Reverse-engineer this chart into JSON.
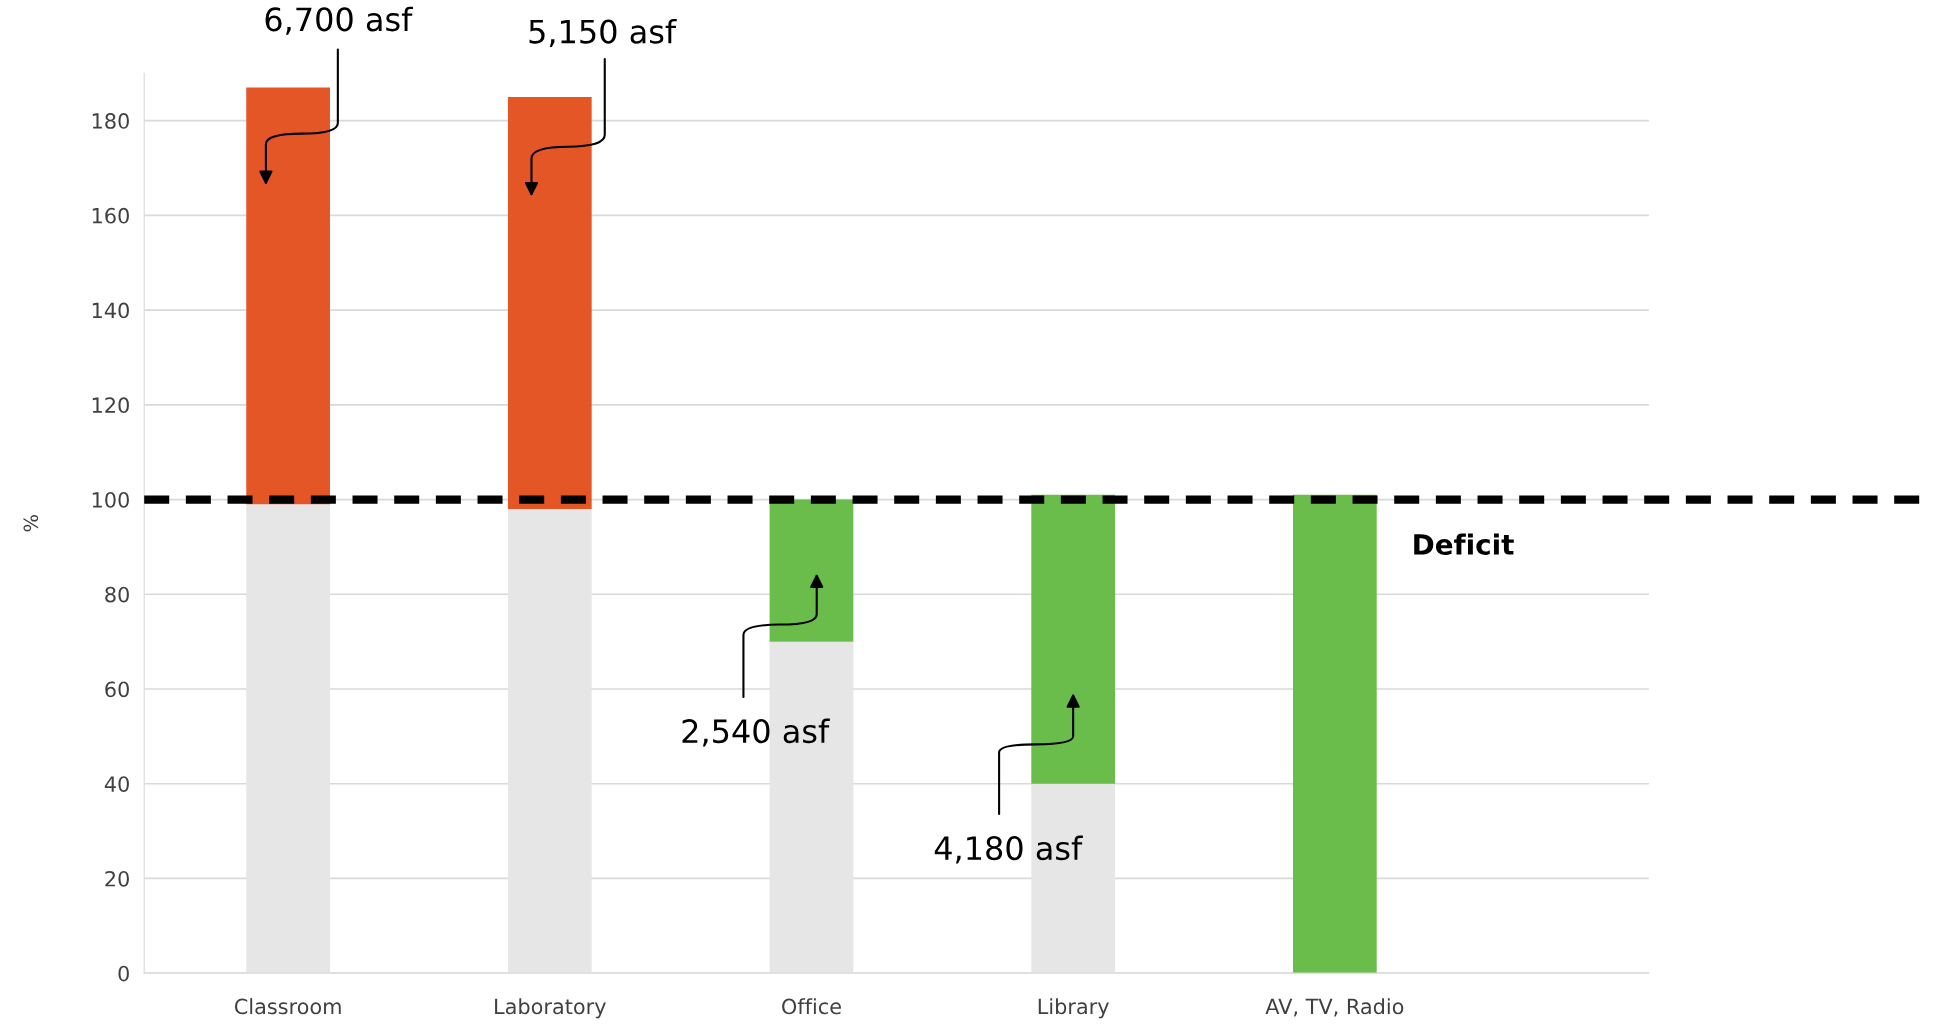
{
  "chart_data": {
    "type": "bar",
    "stacked": true,
    "categories": [
      "Classroom",
      "Laboratory",
      "Office",
      "Library",
      "AV, TV, Radio"
    ],
    "series": [
      {
        "color": "#e6e6e6",
        "values": [
          99,
          98,
          70,
          40,
          0
        ]
      },
      {
        "colors": [
          "#e55627",
          "#e55627",
          "#6abd4b",
          "#6abd4b",
          "#6abd4b"
        ],
        "values": [
          88,
          87,
          30,
          61,
          101
        ]
      }
    ],
    "ylabel": "%",
    "ylim": [
      0,
      190
    ],
    "yticks": [
      0,
      20,
      40,
      60,
      80,
      100,
      120,
      140,
      160,
      180
    ],
    "grid": "y",
    "ref_lines": [
      {
        "axis": "y",
        "value": 100,
        "label": "Deficit",
        "color": "#000000",
        "line_style": "dashed"
      }
    ],
    "annotations": [
      "6,700 asf",
      "5,150 asf",
      "2,540 asf",
      "4,180 asf"
    ]
  }
}
